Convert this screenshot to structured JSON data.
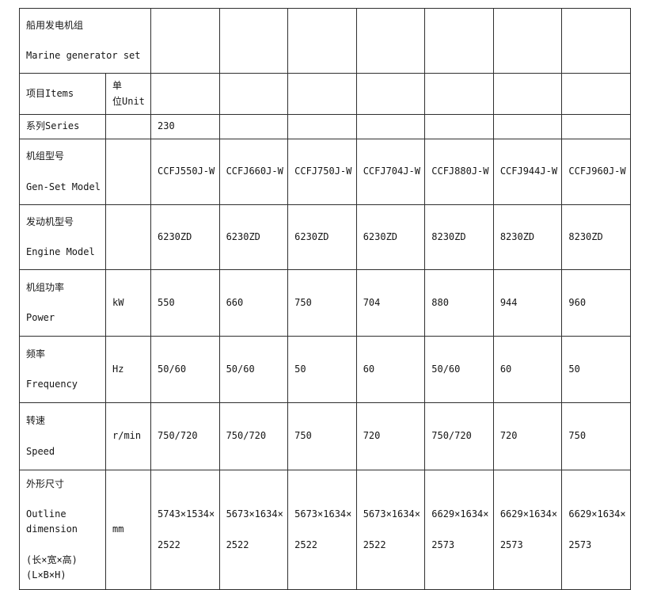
{
  "table": {
    "title": "船用发电机组\n\nMarine generator set",
    "items_header": "项目Items",
    "unit_header": "单\n位Unit",
    "series_row": {
      "label": "系列Series",
      "value": "230"
    },
    "spec_rows": [
      {
        "label": "机组型号\n\nGen-Set Model",
        "unit": "",
        "values": [
          "CCFJ550J-W",
          "CCFJ660J-W",
          "CCFJ750J-W",
          "CCFJ704J-W",
          "CCFJ880J-W",
          "CCFJ944J-W",
          "CCFJ960J-W"
        ]
      },
      {
        "label": "发动机型号\n\nEngine Model",
        "unit": "",
        "values": [
          "6230ZD",
          "6230ZD",
          "6230ZD",
          "6230ZD",
          "8230ZD",
          "8230ZD",
          "8230ZD"
        ]
      },
      {
        "label": "机组功率\n\nPower",
        "unit": "kW",
        "values": [
          "550",
          "660",
          "750",
          "704",
          "880",
          "944",
          "960"
        ]
      },
      {
        "label": "频率\n\nFrequency",
        "unit": "Hz",
        "values": [
          "50/60",
          "50/60",
          "50",
          "60",
          "50/60",
          "60",
          "50"
        ]
      },
      {
        "label": "转速\n\nSpeed",
        "unit": "r/min",
        "values": [
          "750/720",
          "750/720",
          "750",
          "720",
          "750/720",
          "720",
          "750"
        ]
      },
      {
        "label": "外形尺寸\n\nOutline dimension\n\n(长×宽×高)\n(L×B×H)",
        "unit": "mm",
        "values": [
          "5743×1534×\n\n2522",
          "5673×1634×\n\n2522",
          "5673×1634×\n\n2522",
          "5673×1634×\n\n2522",
          "6629×1634×\n\n2573",
          "6629×1634×\n\n2573",
          "6629×1634×\n\n2573"
        ]
      }
    ],
    "colors": {
      "border": "#2f2f2f",
      "text": "#151515",
      "background": "#ffffff"
    }
  }
}
